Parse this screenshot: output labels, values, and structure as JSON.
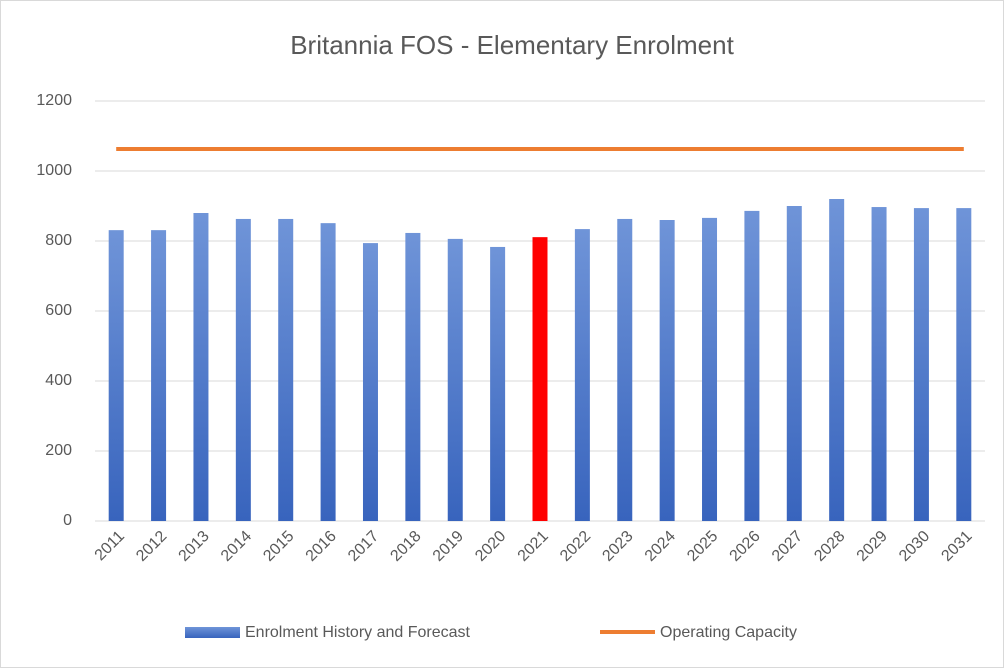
{
  "chart_data": {
    "type": "bar_line",
    "title": "Britannia FOS - Elementary Enrolment",
    "categories": [
      "2011",
      "2012",
      "2013",
      "2014",
      "2015",
      "2016",
      "2017",
      "2018",
      "2019",
      "2020",
      "2021",
      "2022",
      "2023",
      "2024",
      "2025",
      "2026",
      "2027",
      "2028",
      "2029",
      "2030",
      "2031"
    ],
    "series": [
      {
        "name": "Enrolment History and Forecast",
        "type": "bar",
        "color": "#4472c4",
        "colors": [
          "#4472c4",
          "#4472c4",
          "#4472c4",
          "#4472c4",
          "#4472c4",
          "#4472c4",
          "#4472c4",
          "#4472c4",
          "#4472c4",
          "#4472c4",
          "#ff0000",
          "#4472c4",
          "#4472c4",
          "#4472c4",
          "#4472c4",
          "#4472c4",
          "#4472c4",
          "#4472c4",
          "#4472c4",
          "#4472c4",
          "#4472c4"
        ],
        "values": [
          831,
          831,
          880,
          863,
          863,
          851,
          794,
          823,
          806,
          783,
          811,
          834,
          863,
          860,
          866,
          886,
          900,
          920,
          897,
          894,
          894
        ]
      },
      {
        "name": "Operating Capacity",
        "type": "line",
        "color": "#ed7d31",
        "values": [
          1063,
          1063,
          1063,
          1063,
          1063,
          1063,
          1063,
          1063,
          1063,
          1063,
          1063,
          1063,
          1063,
          1063,
          1063,
          1063,
          1063,
          1063,
          1063,
          1063,
          1063
        ]
      }
    ],
    "ylim": [
      0,
      1200
    ],
    "yticks": [
      0,
      200,
      400,
      600,
      800,
      1000,
      1200
    ],
    "grid": true,
    "legend": "bottom"
  }
}
